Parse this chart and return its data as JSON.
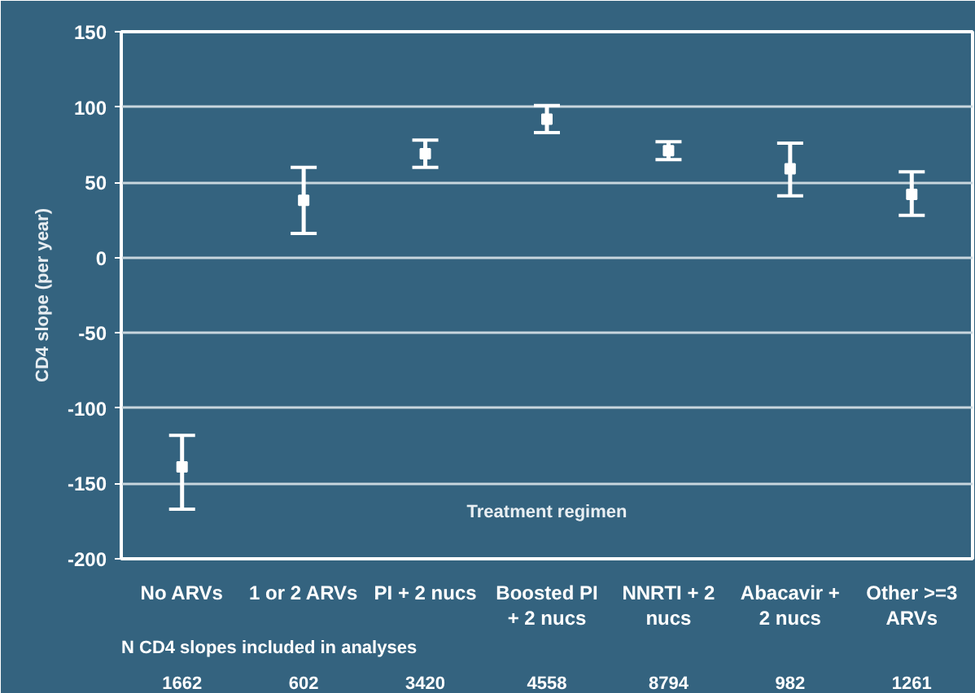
{
  "chart_data": {
    "type": "scatter",
    "xlabel": "Treatment regimen",
    "ylabel": "CD4 slope (per year)",
    "categories": [
      "No ARVs",
      "1 or 2 ARVs",
      "PI + 2 nucs",
      "Boosted PI + 2 nucs",
      "NNRTI + 2 nucs",
      "Abacavir + 2 nucs",
      "Other >=3 ARVs"
    ],
    "series": [
      {
        "color": "#ffffff",
        "values": [
          -139,
          38,
          69,
          92,
          71,
          59,
          42
        ],
        "errors": [
          [
            -167,
            -118
          ],
          [
            16,
            60
          ],
          [
            60,
            78
          ],
          [
            83,
            101
          ],
          [
            65,
            77
          ],
          [
            41,
            76
          ],
          [
            28,
            57
          ]
        ]
      }
    ],
    "marker": "square",
    "ylim": [
      -200,
      150
    ],
    "yticks": [
      -200,
      -150,
      -100,
      -50,
      0,
      50,
      100,
      150
    ],
    "grid": "y",
    "annotations": [
      "N CD4 slopes included in analyses",
      "1662",
      "602",
      "3420",
      "4558",
      "8794",
      "982",
      "1261"
    ]
  }
}
